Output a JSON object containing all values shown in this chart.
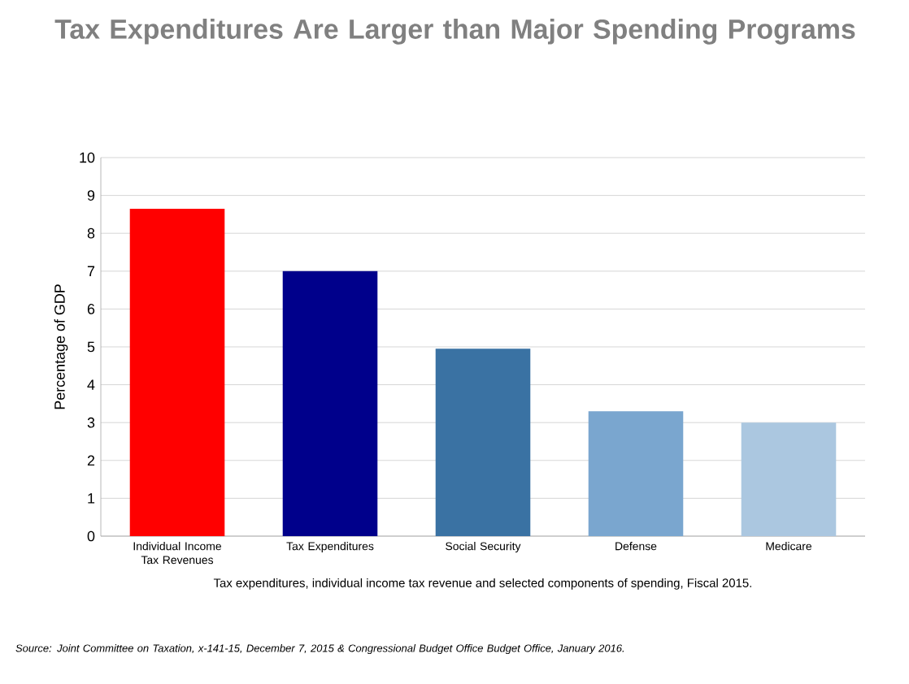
{
  "chart_data": {
    "type": "bar",
    "title": "Tax Expenditures Are Larger than Major Spending Programs",
    "categories": [
      "Individual Income Tax Revenues",
      "Tax Expenditures",
      "Social Security",
      "Defense",
      "Medicare"
    ],
    "values": [
      8.65,
      7.0,
      4.95,
      3.3,
      3.0
    ],
    "colors": [
      "#ff0000",
      "#00008b",
      "#3a72a3",
      "#7aa6cf",
      "#abc7e0"
    ],
    "ylabel": "Percentage of GDP",
    "xlabel": "Tax expenditures, individual income tax revenue and selected components  of spending, Fiscal 2015.",
    "annotations": [
      "*Source: Joint Committee on Taxation, x-141-15, December 7, 2015 & Congressional Budget Office Budget Office, January 2016.*"
    ],
    "ylim": [
      0,
      10
    ],
    "yticks": [
      0,
      1,
      2,
      3,
      4,
      5,
      6,
      7,
      8,
      9,
      10
    ],
    "grid": "y"
  }
}
